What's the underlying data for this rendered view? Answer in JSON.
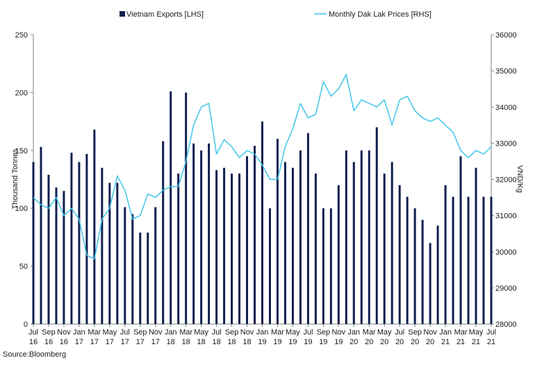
{
  "chart_data": {
    "type": "bar+line",
    "title": "",
    "legend": [
      {
        "name": "Vietnam Exports [LHS]",
        "color": "#0f1f4f",
        "kind": "bar"
      },
      {
        "name": "Monthly Dak Lak Prices [RHS]",
        "color": "#3fc6e8",
        "kind": "line"
      }
    ],
    "ylabel_left": "Thousand Tonnes",
    "ylabel_right": "VND/Kg",
    "ylim_left": [
      0,
      250
    ],
    "ylim_right": [
      28000,
      36000
    ],
    "yticks_left": [
      0,
      50,
      100,
      150,
      200,
      250
    ],
    "yticks_right": [
      28000,
      29000,
      30000,
      31000,
      32000,
      33000,
      34000,
      35000,
      36000
    ],
    "xtick_labels": [
      [
        "Jul",
        "16"
      ],
      [
        "Sep",
        "16"
      ],
      [
        "Nov",
        "16"
      ],
      [
        "Jan",
        "17"
      ],
      [
        "Mar",
        "17"
      ],
      [
        "May",
        "17"
      ],
      [
        "Jul",
        "17"
      ],
      [
        "Sep",
        "17"
      ],
      [
        "Nov",
        "17"
      ],
      [
        "Jan",
        "18"
      ],
      [
        "Mar",
        "18"
      ],
      [
        "May",
        "18"
      ],
      [
        "Jul",
        "18"
      ],
      [
        "Sep",
        "18"
      ],
      [
        "Nov",
        "18"
      ],
      [
        "Jan",
        "19"
      ],
      [
        "Mar",
        "19"
      ],
      [
        "May",
        "19"
      ],
      [
        "Jul",
        "19"
      ],
      [
        "Sep",
        "19"
      ],
      [
        "Nov",
        "19"
      ],
      [
        "Jan",
        "20"
      ],
      [
        "Mar",
        "20"
      ],
      [
        "May",
        "20"
      ],
      [
        "Jul",
        "20"
      ],
      [
        "Sep",
        "20"
      ],
      [
        "Nov",
        "20"
      ],
      [
        "Jan",
        "21"
      ],
      [
        "Mar",
        "21"
      ],
      [
        "May",
        "21"
      ],
      [
        "Jul",
        "21"
      ]
    ],
    "months": [
      "Jul-16",
      "Aug-16",
      "Sep-16",
      "Oct-16",
      "Nov-16",
      "Dec-16",
      "Jan-17",
      "Feb-17",
      "Mar-17",
      "Apr-17",
      "May-17",
      "Jun-17",
      "Jul-17",
      "Aug-17",
      "Sep-17",
      "Oct-17",
      "Nov-17",
      "Dec-17",
      "Jan-18",
      "Feb-18",
      "Mar-18",
      "Apr-18",
      "May-18",
      "Jun-18",
      "Jul-18",
      "Aug-18",
      "Sep-18",
      "Oct-18",
      "Nov-18",
      "Dec-18",
      "Jan-19",
      "Feb-19",
      "Mar-19",
      "Apr-19",
      "May-19",
      "Jun-19",
      "Jul-19",
      "Aug-19",
      "Sep-19",
      "Oct-19",
      "Nov-19",
      "Dec-19",
      "Jan-20",
      "Feb-20",
      "Mar-20",
      "Apr-20",
      "May-20",
      "Jun-20",
      "Jul-20",
      "Aug-20",
      "Sep-20",
      "Oct-20",
      "Nov-20",
      "Dec-20",
      "Jan-21",
      "Feb-21",
      "Mar-21",
      "Apr-21",
      "May-21",
      "Jun-21",
      "Jul-21"
    ],
    "exports": [
      140,
      153,
      129,
      118,
      115,
      148,
      140,
      147,
      168,
      135,
      122,
      122,
      101,
      95,
      79,
      79,
      101,
      158,
      201,
      130,
      200,
      156,
      150,
      156,
      133,
      135,
      130,
      130,
      145,
      154,
      175,
      100,
      160,
      140,
      135,
      150,
      165,
      130,
      100,
      100,
      120,
      150,
      140,
      150,
      150,
      170,
      130,
      140,
      120,
      110,
      100,
      90,
      70,
      85,
      120,
      110,
      145,
      110,
      135,
      110,
      110
    ],
    "prices": [
      31500,
      31300,
      31200,
      31500,
      31000,
      31200,
      30900,
      29900,
      29800,
      30900,
      31200,
      32100,
      31700,
      30900,
      31000,
      31600,
      31500,
      31700,
      31800,
      31800,
      32500,
      33500,
      34000,
      34100,
      32700,
      33100,
      32900,
      32600,
      32800,
      32700,
      32400,
      32000,
      32000,
      32900,
      33400,
      34100,
      33700,
      33800,
      34700,
      34300,
      34500,
      34900,
      33900,
      34200,
      34100,
      34000,
      34200,
      33500,
      34200,
      34300,
      33900,
      33700,
      33600,
      33700,
      33500,
      33300,
      32800,
      32600,
      32800,
      32700,
      32900
    ]
  },
  "source": "Source:Bloomberg"
}
